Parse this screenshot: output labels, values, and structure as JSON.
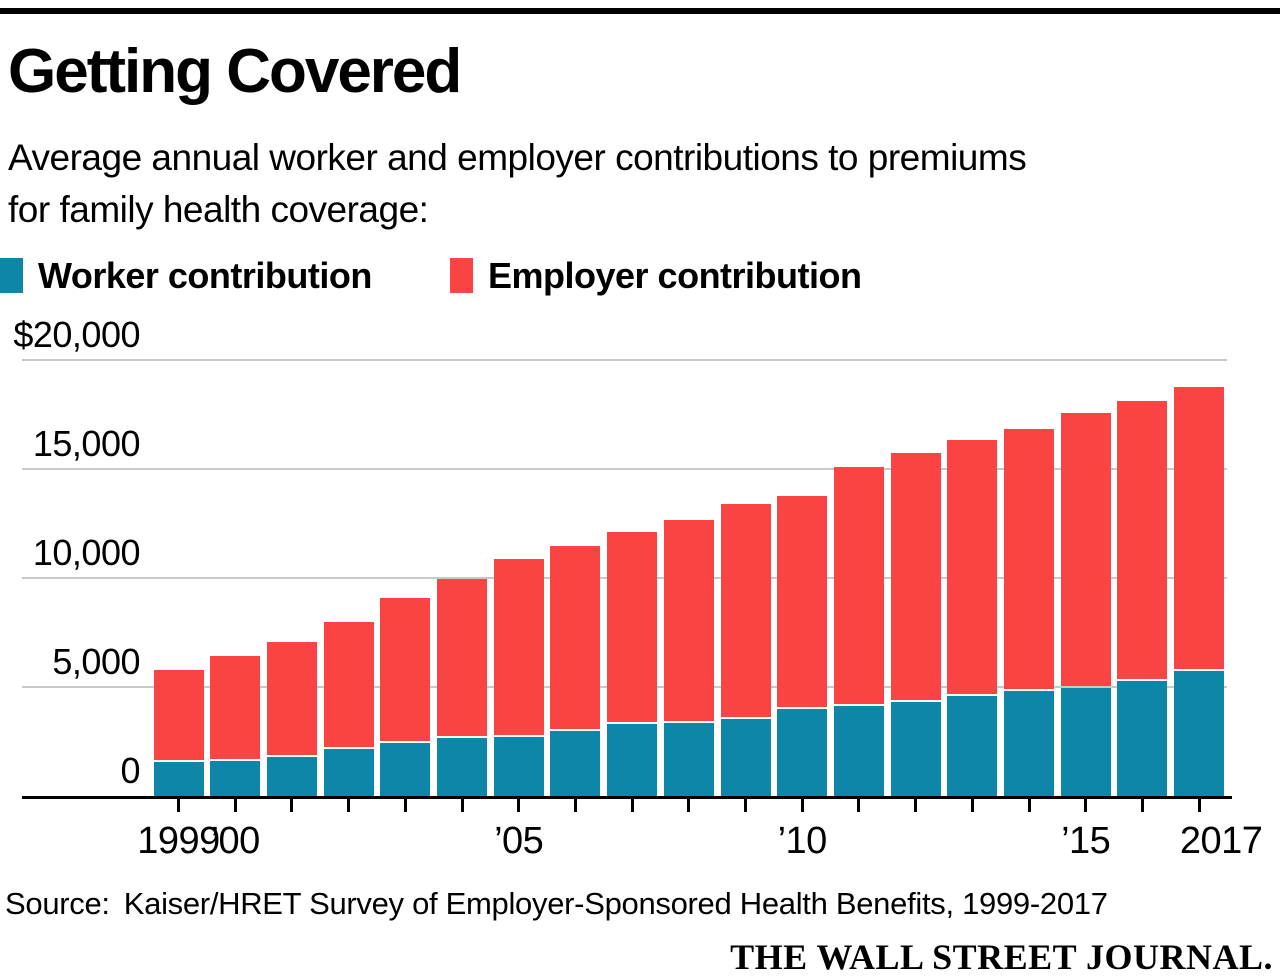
{
  "page": {
    "title": "Getting Covered",
    "subtitle_line1": "Average annual worker and employer contributions to premiums",
    "subtitle_line2": "for family health coverage:",
    "source_label": "Source:",
    "source_text": "Kaiser/HRET Survey of Employer-Sponsored Health Benefits, 1999-2017",
    "brand": "THE WALL STREET JOURNAL."
  },
  "legend": {
    "items": [
      {
        "label": "Worker contribution",
        "color": "#0e86a7"
      },
      {
        "label": "Employer contribution",
        "color": "#fa4444"
      }
    ]
  },
  "colors": {
    "worker_blue": "#0e86a7",
    "employer_red": "#fa4444",
    "gridline_gray": "#c8c8c8",
    "axis_black": "#000000"
  },
  "chart_data": {
    "type": "bar",
    "stacked": true,
    "title": "Getting Covered",
    "subtitle": "Average annual worker and employer contributions to premiums for family health coverage:",
    "categories": [
      "1999",
      "2000",
      "2001",
      "2002",
      "2003",
      "2004",
      "2005",
      "2006",
      "2007",
      "2008",
      "2009",
      "2010",
      "2011",
      "2012",
      "2013",
      "2014",
      "2015",
      "2016",
      "2017"
    ],
    "series": [
      {
        "name": "Worker contribution",
        "color": "#0e86a7",
        "values": [
          1543,
          1619,
          1787,
          2137,
          2412,
          2661,
          2713,
          2973,
          3281,
          3354,
          3515,
          3997,
          4129,
          4316,
          4565,
          4823,
          4955,
          5277,
          5714
        ]
      },
      {
        "name": "Employer contribution",
        "color": "#fa4444",
        "values": [
          4247,
          4819,
          5274,
          5866,
          6656,
          7289,
          8167,
          8508,
          8824,
          9325,
          9860,
          9773,
          10944,
          11429,
          11786,
          12011,
          12591,
          12865,
          13049
        ]
      }
    ],
    "ylim": [
      0,
      20000
    ],
    "yticks": [
      {
        "value": 0,
        "label": "0"
      },
      {
        "value": 5000,
        "label": "5,000"
      },
      {
        "value": 10000,
        "label": "10,000"
      },
      {
        "value": 15000,
        "label": "15,000"
      },
      {
        "value": 20000,
        "label": "$20,000"
      }
    ],
    "xticks_labeled": [
      {
        "year": "1999",
        "label": "1999"
      },
      {
        "year": "2000",
        "label": "’00"
      },
      {
        "year": "2005",
        "label": "’05"
      },
      {
        "year": "2010",
        "label": "’10"
      },
      {
        "year": "2015",
        "label": "’15"
      },
      {
        "year": "2017",
        "label": "2017"
      }
    ],
    "grid": true,
    "legend_position": "top-left"
  }
}
